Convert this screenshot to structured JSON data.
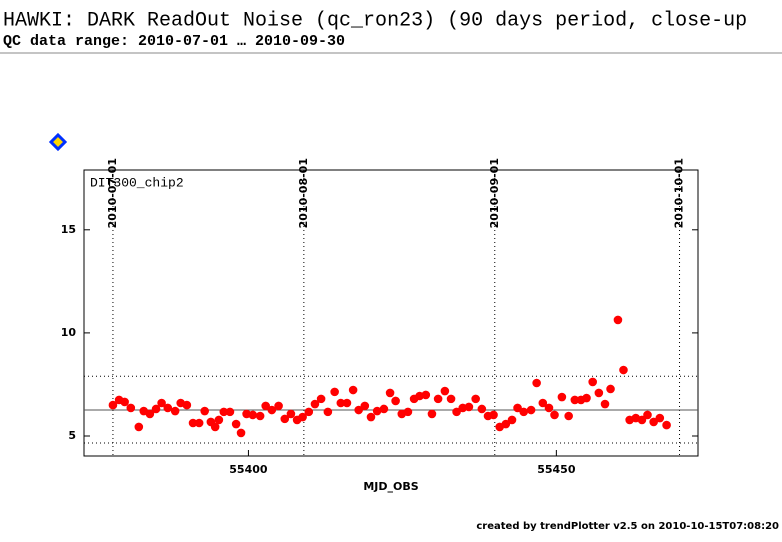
{
  "header": {
    "title": "HAWKI: DARK ReadOut Noise (qc_ron23) (90 days period, close-up",
    "subtitle": "QC data range: 2010-07-01 … 2010-09-30"
  },
  "chart_data": {
    "type": "scatter",
    "panel_label": "DIT300_chip2",
    "xlabel": "MJD_OBS",
    "color": "#ff0000",
    "xlim": [
      55373.3,
      55473.0
    ],
    "ylim": [
      4.03,
      17.9
    ],
    "xticks": [
      55400,
      55450
    ],
    "yticks": [
      5,
      10,
      15
    ],
    "x2ticks": [
      {
        "value": 55378,
        "label": "2010-07-01"
      },
      {
        "value": 55409,
        "label": "2010-08-01"
      },
      {
        "value": 55440,
        "label": "2010-09-01"
      },
      {
        "value": 55470,
        "label": "2010-10-01"
      }
    ],
    "hlines_solid": [
      6.26
    ],
    "hlines_dotted": [
      7.9,
      4.66
    ],
    "x": [
      55378.0,
      55379.0,
      55379.9,
      55380.9,
      55382.2,
      55383.0,
      55384.0,
      55385.0,
      55385.9,
      55386.9,
      55388.1,
      55389.0,
      55390.0,
      55391.0,
      55392.0,
      55392.9,
      55393.9,
      55394.6,
      55395.2,
      55396.0,
      55397.0,
      55398.0,
      55398.8,
      55399.7,
      55400.7,
      55401.9,
      55402.8,
      55403.8,
      55404.9,
      55405.9,
      55406.9,
      55407.9,
      55408.8,
      55409.8,
      55410.8,
      55411.8,
      55412.9,
      55414.0,
      55415.0,
      55416.0,
      55417.0,
      55417.9,
      55418.9,
      55419.9,
      55420.9,
      55422.0,
      55423.0,
      55423.9,
      55424.9,
      55425.9,
      55426.9,
      55427.8,
      55428.8,
      55429.8,
      55430.8,
      55431.9,
      55432.9,
      55433.8,
      55434.8,
      55435.8,
      55436.9,
      55437.9,
      55438.9,
      55439.8,
      55440.8,
      55441.8,
      55442.8,
      55443.7,
      55444.7,
      55445.9,
      55446.8,
      55447.8,
      55448.8,
      55449.7,
      55450.9,
      55452.0,
      55453.0,
      55454.0,
      55454.9,
      55455.9,
      55456.9,
      55457.9,
      55458.8,
      55460.0,
      55460.9,
      55461.9,
      55462.9,
      55463.9,
      55464.8,
      55465.8,
      55466.8,
      55467.9
    ],
    "values": [
      6.5,
      6.75,
      6.65,
      6.36,
      5.44,
      6.21,
      6.07,
      6.31,
      6.6,
      6.36,
      6.21,
      6.6,
      6.5,
      5.63,
      5.63,
      6.21,
      5.68,
      5.44,
      5.78,
      6.17,
      6.17,
      5.58,
      5.15,
      6.07,
      6.02,
      5.97,
      6.46,
      6.26,
      6.46,
      5.83,
      6.07,
      5.78,
      5.92,
      6.17,
      6.55,
      6.8,
      6.17,
      7.14,
      6.6,
      6.6,
      7.23,
      6.26,
      6.46,
      5.92,
      6.21,
      6.31,
      7.09,
      6.7,
      6.07,
      6.17,
      6.8,
      6.94,
      6.99,
      6.07,
      6.8,
      7.18,
      6.8,
      6.17,
      6.36,
      6.41,
      6.8,
      6.31,
      5.97,
      6.02,
      5.44,
      5.58,
      5.78,
      6.36,
      6.17,
      6.26,
      7.57,
      6.6,
      6.36,
      6.02,
      6.89,
      5.97,
      6.75,
      6.75,
      6.84,
      7.62,
      7.09,
      6.55,
      7.28,
      10.63,
      8.2,
      5.78,
      5.87,
      5.78,
      6.02,
      5.68,
      5.87,
      5.53
    ]
  },
  "footer": "created by trendPlotter v2.5 on 2010-10-15T07:08:20"
}
